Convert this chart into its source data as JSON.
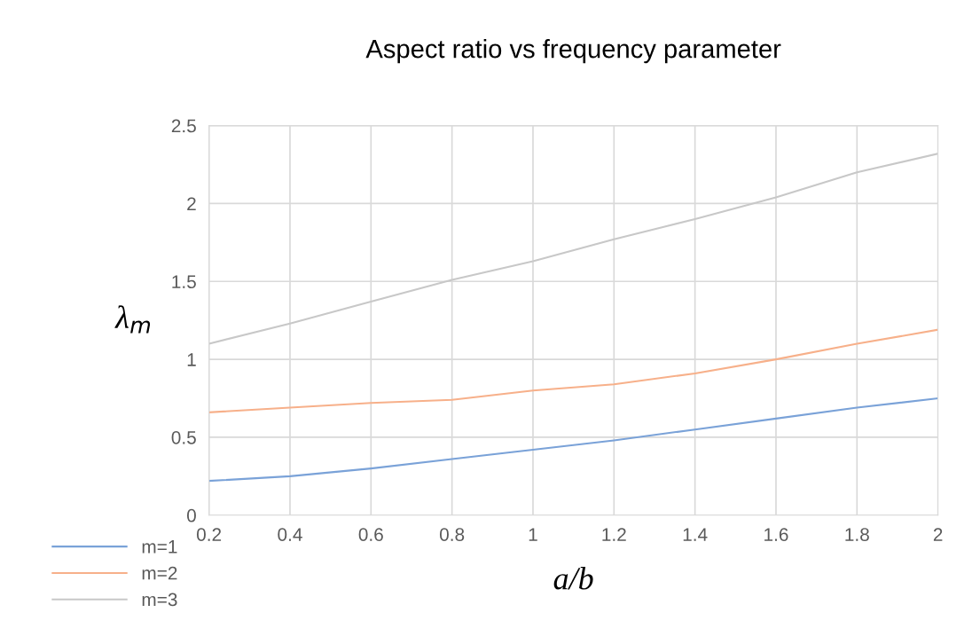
{
  "chart_data": {
    "type": "line",
    "title": "Aspect ratio vs frequency parameter",
    "xlabel": "a/b",
    "ylabel": "λ$_{m}$",
    "x": [
      0.2,
      0.4,
      0.6,
      0.8,
      1,
      1.2,
      1.4,
      1.6,
      1.8,
      2
    ],
    "series": [
      {
        "name": "m=1",
        "color": "#7aa2d8",
        "values": [
          0.22,
          0.25,
          0.3,
          0.36,
          0.42,
          0.48,
          0.55,
          0.62,
          0.69,
          0.75
        ]
      },
      {
        "name": "m=2",
        "color": "#f7b08a",
        "values": [
          0.66,
          0.69,
          0.72,
          0.74,
          0.8,
          0.84,
          0.91,
          1.0,
          1.1,
          1.19
        ]
      },
      {
        "name": "m=3",
        "color": "#c8c8c8",
        "values": [
          1.1,
          1.23,
          1.37,
          1.51,
          1.63,
          1.77,
          1.9,
          2.04,
          2.2,
          2.32
        ]
      }
    ],
    "xlim": [
      0.2,
      2
    ],
    "xticks": [
      0.2,
      0.4,
      0.6,
      0.8,
      1,
      1.2,
      1.4,
      1.6,
      1.8,
      2
    ],
    "ylim": [
      0,
      2.5
    ],
    "yticks": [
      0,
      0.5,
      1,
      1.5,
      2,
      2.5
    ],
    "grid": true,
    "legend": "bottom left",
    "marker": "none",
    "line_style": "solid"
  }
}
